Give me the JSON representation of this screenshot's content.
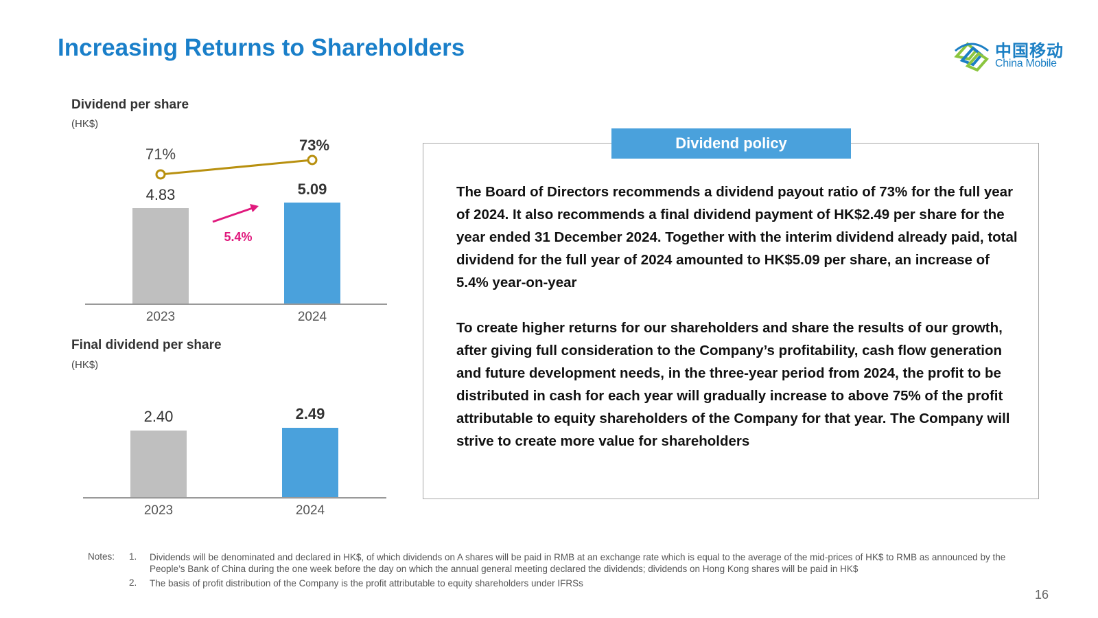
{
  "header": {
    "title": "Increasing Returns to Shareholders",
    "logo_cn": "中国移动",
    "logo_en": "China Mobile"
  },
  "colors": {
    "title": "#1a7fc9",
    "bar_prior": "#bfbfbf",
    "bar_current": "#4aa1dc",
    "payout_line": "#b8900f",
    "growth_arrow": "#e0197d",
    "policy_tab": "#4aa1dc"
  },
  "chart_data": [
    {
      "type": "bar",
      "title": "Dividend per share",
      "unit": "(HK$)",
      "categories": [
        "2023",
        "2024"
      ],
      "values": [
        4.83,
        5.09
      ],
      "value_labels": [
        "4.83",
        "5.09"
      ],
      "growth_label": "5.4%",
      "overlay_line": {
        "name": "Payout ratio",
        "values": [
          71,
          73
        ],
        "labels": [
          "71%",
          "73%"
        ]
      }
    },
    {
      "type": "bar",
      "title": "Final dividend per share",
      "unit": "(HK$)",
      "categories": [
        "2023",
        "2024"
      ],
      "values": [
        2.4,
        2.49
      ],
      "value_labels": [
        "2.40",
        "2.49"
      ]
    }
  ],
  "policy": {
    "heading": "Dividend policy",
    "paragraphs": [
      "The Board of Directors recommends a dividend payout ratio of 73% for the full year of 2024. It also recommends a final dividend payment of HK$2.49 per share for the year ended 31 December 2024. Together with the interim dividend already paid, total dividend for the full year of 2024 amounted to HK$5.09 per share, an increase of 5.4% year-on-year",
      "To create higher returns for our shareholders and share the results of our growth, after giving full consideration to the Company’s profitability, cash flow generation and future development needs, in the three-year period from 2024, the profit to be distributed in cash for each year will gradually increase to above 75% of the profit attributable to equity shareholders of the Company for that year. The Company will strive to create more value for shareholders"
    ]
  },
  "notes": {
    "label": "Notes:",
    "items": [
      {
        "num": "1.",
        "text": "Dividends will be denominated and declared in HK$, of which dividends on A shares will be paid in RMB at an exchange rate which is equal to the average of the mid-prices of HK$ to RMB as announced by the People’s Bank of China during the one week before the day on which the annual general meeting declared the dividends; dividends on Hong Kong shares will be paid in HK$"
      },
      {
        "num": "2.",
        "text": "The basis of profit distribution of the Company is the profit attributable to equity shareholders under IFRSs"
      }
    ]
  },
  "page_number": "16"
}
